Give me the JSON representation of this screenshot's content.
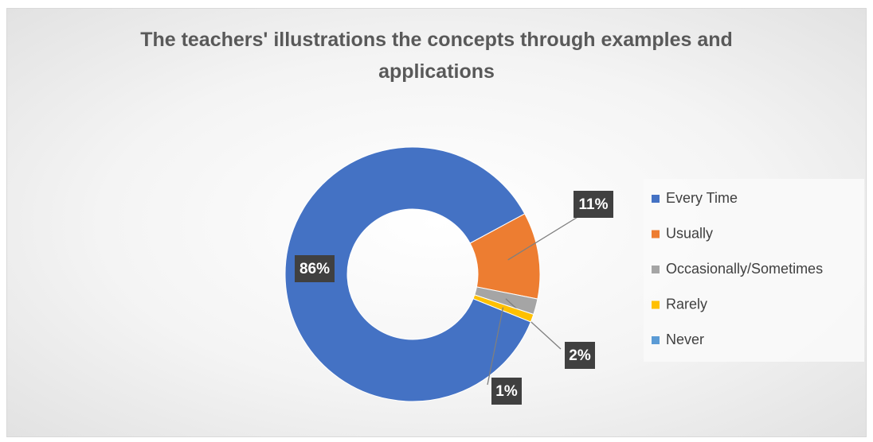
{
  "chart_data": {
    "type": "donut",
    "title": "The teachers' illustrations the concepts through examples and applications",
    "categories": [
      "Every Time",
      "Usually",
      "Occasionally/Sometimes",
      "Rarely",
      "Never"
    ],
    "values": [
      86,
      11,
      2,
      1,
      0
    ],
    "value_labels": [
      "86%",
      "11%",
      "2%",
      "1%",
      null
    ],
    "colors": [
      "#4472c4",
      "#ed7d31",
      "#a5a5a5",
      "#ffc000",
      "#5b9bd5"
    ],
    "legend": "right"
  }
}
